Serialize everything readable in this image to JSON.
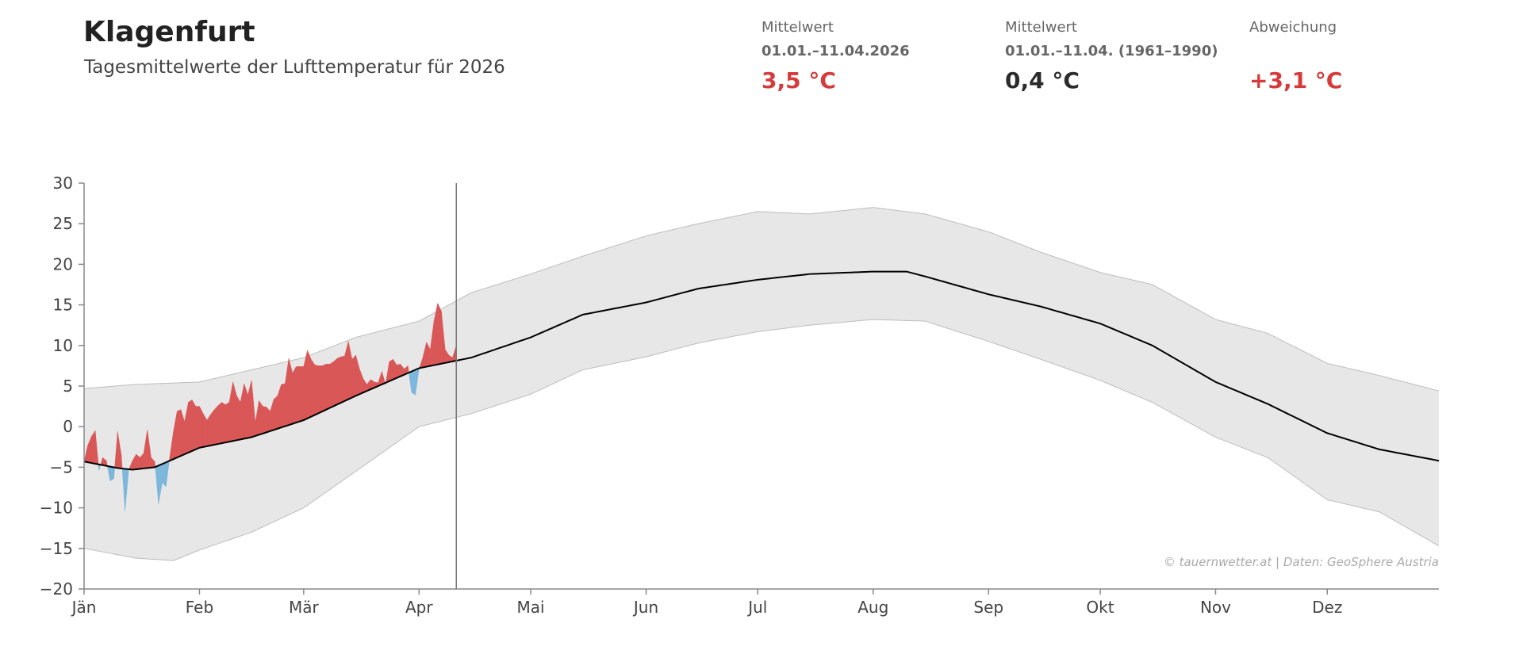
{
  "header": {
    "title": "Klagenfurt",
    "subtitle": "Tagesmittelwerte der Lufttemperatur für 2026"
  },
  "stats": [
    {
      "label": "Mittelwert",
      "period": "01.01.–11.04.2026",
      "value": "3,5 °C",
      "color": "#d63b3b"
    },
    {
      "label": "Mittelwert",
      "period": "01.01.–11.04. (1961–1990)",
      "value": "0,4 °C",
      "color": "#2b2b2b"
    },
    {
      "label": "Abweichung",
      "period": "",
      "value": "+3,1 °C",
      "color": "#d63b3b"
    }
  ],
  "chart_data": {
    "type": "area",
    "ylim": [
      -20,
      30
    ],
    "yticks": [
      "30",
      "25",
      "20",
      "15",
      "10",
      "5",
      "0",
      "−5",
      "−10",
      "−15",
      "−20"
    ],
    "ytick_values": [
      30,
      25,
      20,
      15,
      10,
      5,
      0,
      -5,
      -10,
      -15,
      -20
    ],
    "xticks": [
      "Jän",
      "Feb",
      "Mär",
      "Apr",
      "Mai",
      "Jun",
      "Jul",
      "Aug",
      "Sep",
      "Okt",
      "Nov",
      "Dez"
    ],
    "xtick_dates": [
      "01-01",
      "02-01",
      "03-01",
      "04-01",
      "05-01",
      "06-01",
      "07-01",
      "08-01",
      "09-01",
      "10-01",
      "11-01",
      "12-01"
    ],
    "current_date": "04-11",
    "grid": false,
    "colors": {
      "above": "#d95757",
      "below": "#7db7db",
      "band": "#e7e7e7",
      "band_edge": "#bdbdbd",
      "mean": "#000000",
      "marker": "#777777"
    },
    "climate_mean": [
      [
        "01-01",
        -4.3
      ],
      [
        "01-10",
        -5.1
      ],
      [
        "01-14",
        -5.3
      ],
      [
        "01-20",
        -5.0
      ],
      [
        "02-01",
        -2.6
      ],
      [
        "02-15",
        -1.3
      ],
      [
        "03-01",
        0.8
      ],
      [
        "03-15",
        3.8
      ],
      [
        "04-01",
        7.2
      ],
      [
        "04-15",
        8.5
      ],
      [
        "05-01",
        11.0
      ],
      [
        "05-15",
        13.8
      ],
      [
        "06-01",
        15.3
      ],
      [
        "06-15",
        17.0
      ],
      [
        "07-01",
        18.1
      ],
      [
        "07-15",
        18.8
      ],
      [
        "08-01",
        19.1
      ],
      [
        "08-10",
        19.1
      ],
      [
        "08-15",
        18.5
      ],
      [
        "09-01",
        16.3
      ],
      [
        "09-15",
        14.8
      ],
      [
        "10-01",
        12.7
      ],
      [
        "10-15",
        10.0
      ],
      [
        "11-01",
        5.5
      ],
      [
        "11-15",
        2.8
      ],
      [
        "12-01",
        -0.8
      ],
      [
        "12-15",
        -2.8
      ],
      [
        "12-31",
        -4.2
      ]
    ],
    "climate_max": [
      [
        "01-01",
        4.7
      ],
      [
        "01-15",
        5.2
      ],
      [
        "02-01",
        5.5
      ],
      [
        "02-15",
        7.0
      ],
      [
        "03-01",
        8.5
      ],
      [
        "03-15",
        11.0
      ],
      [
        "04-01",
        13.0
      ],
      [
        "04-15",
        16.5
      ],
      [
        "05-01",
        18.8
      ],
      [
        "05-15",
        21.0
      ],
      [
        "06-01",
        23.5
      ],
      [
        "06-15",
        25.0
      ],
      [
        "07-01",
        26.5
      ],
      [
        "07-15",
        26.2
      ],
      [
        "08-01",
        27.0
      ],
      [
        "08-15",
        26.2
      ],
      [
        "09-01",
        24.0
      ],
      [
        "09-15",
        21.5
      ],
      [
        "10-01",
        19.0
      ],
      [
        "10-15",
        17.5
      ],
      [
        "11-01",
        13.2
      ],
      [
        "11-15",
        11.5
      ],
      [
        "12-01",
        7.8
      ],
      [
        "12-15",
        6.3
      ],
      [
        "12-31",
        4.4
      ]
    ],
    "climate_min": [
      [
        "01-01",
        -15.0
      ],
      [
        "01-15",
        -16.2
      ],
      [
        "01-25",
        -16.5
      ],
      [
        "02-01",
        -15.2
      ],
      [
        "02-15",
        -13.0
      ],
      [
        "03-01",
        -10.0
      ],
      [
        "03-15",
        -5.5
      ],
      [
        "04-01",
        0.0
      ],
      [
        "04-15",
        1.6
      ],
      [
        "05-01",
        4.0
      ],
      [
        "05-15",
        7.0
      ],
      [
        "06-01",
        8.6
      ],
      [
        "06-15",
        10.3
      ],
      [
        "07-01",
        11.7
      ],
      [
        "07-15",
        12.5
      ],
      [
        "08-01",
        13.2
      ],
      [
        "08-15",
        13.0
      ],
      [
        "09-01",
        10.5
      ],
      [
        "09-15",
        8.3
      ],
      [
        "10-01",
        5.7
      ],
      [
        "10-15",
        3.0
      ],
      [
        "11-01",
        -1.3
      ],
      [
        "11-15",
        -3.8
      ],
      [
        "12-01",
        -9.0
      ],
      [
        "12-15",
        -10.5
      ],
      [
        "12-31",
        -14.7
      ]
    ],
    "observed_2026": [
      -4.3,
      -2.3,
      -1.2,
      -0.5,
      -5.4,
      -3.8,
      -4.2,
      -6.7,
      -6.4,
      -0.6,
      -3.5,
      -10.4,
      -5.3,
      -4.2,
      -3.4,
      -3.8,
      -3.3,
      -0.4,
      -3.8,
      -4.3,
      -9.5,
      -6.9,
      -7.4,
      -3.8,
      -0.6,
      1.9,
      2.1,
      0.6,
      3.0,
      3.3,
      2.5,
      2.5,
      1.6,
      0.8,
      1.5,
      2.1,
      2.6,
      3.0,
      2.7,
      3.0,
      5.5,
      3.8,
      3.0,
      5.3,
      3.9,
      5.7,
      0.5,
      3.2,
      2.5,
      2.4,
      1.9,
      3.4,
      3.8,
      5.2,
      5.3,
      8.4,
      6.6,
      7.4,
      7.4,
      7.4,
      9.4,
      8.3,
      7.6,
      7.5,
      7.5,
      7.7,
      7.7,
      8.0,
      8.4,
      8.6,
      8.7,
      10.5,
      8.3,
      8.8,
      7.1,
      5.9,
      5.2,
      5.8,
      5.5,
      5.4,
      6.8,
      5.2,
      8.0,
      8.3,
      7.6,
      7.7,
      7.1,
      7.5,
      4.2,
      3.9,
      7.1,
      8.5,
      10.4,
      9.5,
      13.0,
      15.2,
      14.2,
      9.5,
      8.8,
      8.5,
      10.0
    ],
    "copyright": "© tauernwetter.at | Daten: GeoSphere Austria"
  }
}
